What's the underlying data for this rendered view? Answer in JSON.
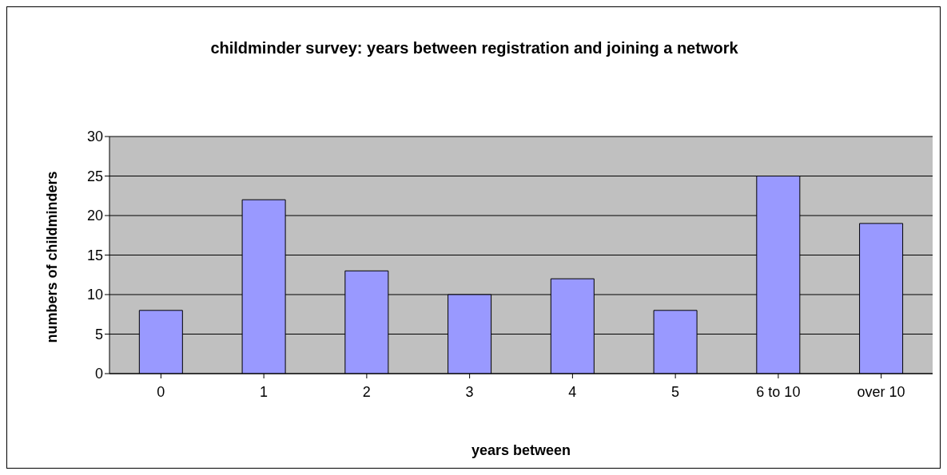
{
  "chart_data": {
    "type": "bar",
    "title": "childminder survey: years between registration and joining a network",
    "xlabel": "years between",
    "ylabel": "numbers of childminders",
    "categories": [
      "0",
      "1",
      "2",
      "3",
      "4",
      "5",
      "6 to 10",
      "over 10"
    ],
    "values": [
      8,
      22,
      13,
      10,
      12,
      8,
      25,
      19
    ],
    "color": "#9999ff",
    "ylim": [
      0,
      30
    ],
    "yticks": [
      0,
      5,
      10,
      15,
      20,
      25,
      30
    ],
    "grid": "y",
    "legend": false
  }
}
